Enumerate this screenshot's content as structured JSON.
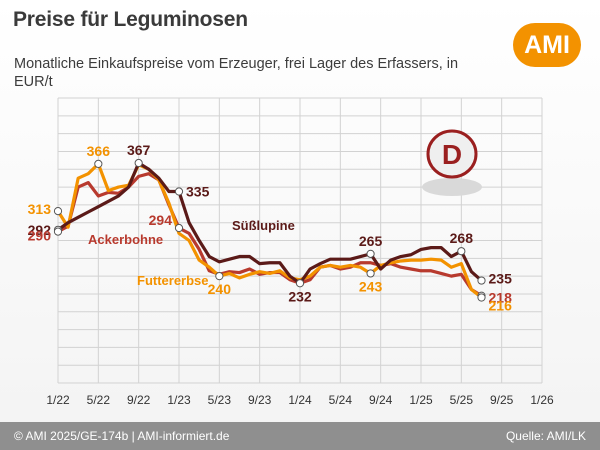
{
  "title": "Preise für Leguminosen",
  "subtitle": "Monatliche Einkaufspreise vom Erzeuger, frei Lager des Erfassers, in EUR/t",
  "logo_text": "AMI",
  "country_badge": "D",
  "footer": {
    "left": "© AMI 2025/GE-174b | AMI-informiert.de",
    "right": "Quelle: AMI/LK"
  },
  "colors": {
    "Süßlupine": "#5b1a18",
    "Ackerbohne": "#b83a2e",
    "Futtererbse": "#f39200",
    "grid": "#d2d2d2",
    "footer": "#8f8f8f"
  },
  "chart_data": {
    "type": "line",
    "x_ticks": [
      "1/22",
      "5/22",
      "9/22",
      "1/23",
      "5/23",
      "9/23",
      "1/24",
      "5/24",
      "9/24",
      "1/25",
      "5/25",
      "9/25",
      "1/26"
    ],
    "xlim": [
      "1/22",
      "1/26"
    ],
    "ylim": [
      120,
      440
    ],
    "grid": true,
    "y_tick_labels_shown": false,
    "series": [
      {
        "name": "Süßlupine",
        "values": [
          [
            "2022-01",
            292
          ],
          [
            "2022-02",
            300
          ],
          [
            "2022-03",
            306
          ],
          [
            "2022-04",
            312
          ],
          [
            "2022-05",
            318
          ],
          [
            "2022-06",
            324
          ],
          [
            "2022-07",
            330
          ],
          [
            "2022-08",
            340
          ],
          [
            "2022-09",
            367
          ],
          [
            "2022-10",
            360
          ],
          [
            "2022-11",
            350
          ],
          [
            "2022-12",
            335
          ],
          [
            "2023-01",
            335
          ],
          [
            "2023-02",
            300
          ],
          [
            "2023-03",
            280
          ],
          [
            "2023-04",
            262
          ],
          [
            "2023-05",
            256
          ],
          [
            "2023-06",
            259
          ],
          [
            "2023-07",
            262
          ],
          [
            "2023-08",
            262
          ],
          [
            "2023-09",
            254
          ],
          [
            "2023-10",
            255
          ],
          [
            "2023-11",
            255
          ],
          [
            "2023-12",
            240
          ],
          [
            "2024-01",
            232
          ],
          [
            "2024-02",
            248
          ],
          [
            "2024-03",
            254
          ],
          [
            "2024-04",
            259
          ],
          [
            "2024-05",
            259
          ],
          [
            "2024-06",
            259
          ],
          [
            "2024-07",
            262
          ],
          [
            "2024-08",
            265
          ],
          [
            "2024-09",
            248
          ],
          [
            "2024-10",
            258
          ],
          [
            "2024-11",
            262
          ],
          [
            "2024-12",
            264
          ],
          [
            "2025-01",
            270
          ],
          [
            "2025-02",
            272
          ],
          [
            "2025-03",
            272
          ],
          [
            "2025-04",
            262
          ],
          [
            "2025-05",
            268
          ],
          [
            "2025-06",
            245
          ],
          [
            "2025-07",
            235
          ]
        ]
      },
      {
        "name": "Ackerbohne",
        "values": [
          [
            "2022-01",
            290
          ],
          [
            "2022-02",
            296
          ],
          [
            "2022-03",
            340
          ],
          [
            "2022-04",
            345
          ],
          [
            "2022-05",
            330
          ],
          [
            "2022-06",
            334
          ],
          [
            "2022-07",
            333
          ],
          [
            "2022-08",
            340
          ],
          [
            "2022-09",
            352
          ],
          [
            "2022-10",
            355
          ],
          [
            "2022-11",
            348
          ],
          [
            "2022-12",
            320
          ],
          [
            "2023-01",
            294
          ],
          [
            "2023-02",
            288
          ],
          [
            "2023-03",
            270
          ],
          [
            "2023-04",
            246
          ],
          [
            "2023-05",
            242
          ],
          [
            "2023-06",
            245
          ],
          [
            "2023-07",
            244
          ],
          [
            "2023-08",
            248
          ],
          [
            "2023-09",
            242
          ],
          [
            "2023-10",
            244
          ],
          [
            "2023-11",
            244
          ],
          [
            "2023-12",
            236
          ],
          [
            "2024-01",
            232
          ],
          [
            "2024-02",
            236
          ],
          [
            "2024-03",
            250
          ],
          [
            "2024-04",
            252
          ],
          [
            "2024-05",
            248
          ],
          [
            "2024-06",
            250
          ],
          [
            "2024-07",
            255
          ],
          [
            "2024-08",
            255
          ],
          [
            "2024-09",
            252
          ],
          [
            "2024-10",
            254
          ],
          [
            "2024-11",
            250
          ],
          [
            "2024-12",
            248
          ],
          [
            "2025-01",
            246
          ],
          [
            "2025-02",
            246
          ],
          [
            "2025-03",
            243
          ],
          [
            "2025-04",
            240
          ],
          [
            "2025-05",
            242
          ],
          [
            "2025-06",
            225
          ],
          [
            "2025-07",
            218
          ]
        ]
      },
      {
        "name": "Futtererbse",
        "values": [
          [
            "2022-01",
            313
          ],
          [
            "2022-02",
            295
          ],
          [
            "2022-03",
            350
          ],
          [
            "2022-04",
            355
          ],
          [
            "2022-05",
            366
          ],
          [
            "2022-06",
            336
          ],
          [
            "2022-07",
            340
          ],
          [
            "2022-08",
            342
          ],
          [
            "2022-09",
            365
          ],
          [
            "2022-10",
            360
          ],
          [
            "2022-11",
            348
          ],
          [
            "2022-12",
            322
          ],
          [
            "2023-01",
            288
          ],
          [
            "2023-02",
            280
          ],
          [
            "2023-03",
            258
          ],
          [
            "2023-04",
            250
          ],
          [
            "2023-05",
            240
          ],
          [
            "2023-06",
            243
          ],
          [
            "2023-07",
            238
          ],
          [
            "2023-08",
            242
          ],
          [
            "2023-09",
            245
          ],
          [
            "2023-10",
            243
          ],
          [
            "2023-11",
            246
          ],
          [
            "2023-12",
            238
          ],
          [
            "2024-01",
            236
          ],
          [
            "2024-02",
            240
          ],
          [
            "2024-03",
            250
          ],
          [
            "2024-04",
            252
          ],
          [
            "2024-05",
            250
          ],
          [
            "2024-06",
            252
          ],
          [
            "2024-07",
            250
          ],
          [
            "2024-08",
            243
          ],
          [
            "2024-09",
            252
          ],
          [
            "2024-10",
            255
          ],
          [
            "2024-11",
            257
          ],
          [
            "2024-12",
            258
          ],
          [
            "2025-01",
            258
          ],
          [
            "2025-02",
            259
          ],
          [
            "2025-03",
            258
          ],
          [
            "2025-04",
            250
          ],
          [
            "2025-05",
            254
          ],
          [
            "2025-06",
            225
          ],
          [
            "2025-07",
            216
          ]
        ]
      }
    ],
    "series_labels": [
      {
        "series": "Süßlupine",
        "text": "Süßlupine"
      },
      {
        "series": "Ackerbohne",
        "text": "Ackerbohne"
      },
      {
        "series": "Futtererbse",
        "text": "Futtererbse"
      }
    ],
    "annotations": [
      {
        "series": "Futtererbse",
        "date": "2022-01",
        "text": "313",
        "pos": "left"
      },
      {
        "series": "Süßlupine",
        "date": "2022-01",
        "text": "292",
        "pos": "left"
      },
      {
        "series": "Ackerbohne",
        "date": "2022-01",
        "text": "290",
        "pos": "left"
      },
      {
        "series": "Futtererbse",
        "date": "2022-05",
        "text": "366",
        "pos": "above"
      },
      {
        "series": "Süßlupine",
        "date": "2022-09",
        "text": "367",
        "pos": "above"
      },
      {
        "series": "Süßlupine",
        "date": "2023-01",
        "text": "335",
        "pos": "right"
      },
      {
        "series": "Ackerbohne",
        "date": "2023-01",
        "text": "294",
        "pos": "left"
      },
      {
        "series": "Futtererbse",
        "date": "2023-05",
        "text": "240",
        "pos": "below"
      },
      {
        "series": "Süßlupine",
        "date": "2024-01",
        "text": "232",
        "pos": "below"
      },
      {
        "series": "Futtererbse",
        "date": "2024-08",
        "text": "243",
        "pos": "below"
      },
      {
        "series": "Süßlupine",
        "date": "2024-08",
        "text": "265",
        "pos": "above"
      },
      {
        "series": "Süßlupine",
        "date": "2025-05",
        "text": "268",
        "pos": "above"
      },
      {
        "series": "Süßlupine",
        "date": "2025-07",
        "text": "235",
        "pos": "right"
      },
      {
        "series": "Ackerbohne",
        "date": "2025-07",
        "text": "218",
        "pos": "right"
      },
      {
        "series": "Futtererbse",
        "date": "2025-07",
        "text": "216",
        "pos": "right"
      }
    ]
  }
}
